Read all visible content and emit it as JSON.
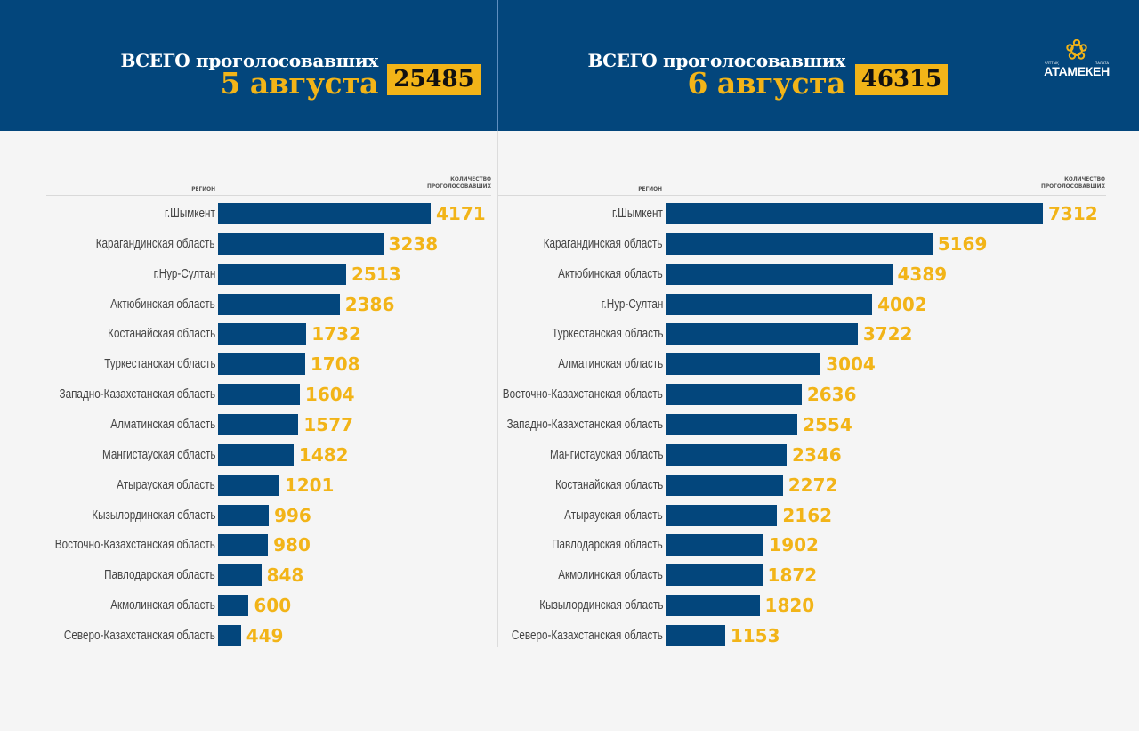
{
  "colors": {
    "header_bg": "#03467c",
    "accent_yellow": "#f2b418",
    "bar": "#03467c",
    "page_bg": "#f5f5f5"
  },
  "logo": {
    "icon": "atameken-ornament-icon",
    "name": "АТАМЕКЕН",
    "small_left": "ҰЛТТЫҚ",
    "small_right": "ПАЛАТА"
  },
  "panels": [
    {
      "title_line1": "ВСЕГО проголосовавших",
      "title_line2": "5 августа",
      "total": "25485",
      "col_region": "РЕГИОН",
      "col_count_1": "КОЛИЧЕСТВО",
      "col_count_2": "ПРОГОЛОСОВАВШИХ"
    },
    {
      "title_line1": "ВСЕГО проголосовавших",
      "title_line2": "6 августа",
      "total": "46315",
      "col_region": "РЕГИОН",
      "col_count_1": "КОЛИЧЕСТВО",
      "col_count_2": "ПРОГОЛОСОВАВШИХ"
    }
  ],
  "chart_data": [
    {
      "type": "bar",
      "orientation": "horizontal",
      "title": "ВСЕГО проголосовавших 5 августа",
      "total": 25485,
      "xlabel": "КОЛИЧЕСТВО ПРОГОЛОСОВАВШИХ",
      "ylabel": "РЕГИОН",
      "grid": false,
      "legend": "none",
      "xlim": [
        0,
        4171
      ],
      "categories": [
        "г.Шымкент",
        "Карагандинская область",
        "г.Нур-Султан",
        "Актюбинская область",
        "Костанайская область",
        "Туркестанская область",
        "Западно-Казахстанская область",
        "Алматинская область",
        "Мангистауская область",
        "Атырауская область",
        "Кызылординская область",
        "Восточно-Казахстанская область",
        "Павлодарская область",
        "Акмолинская область",
        "Северо-Казахстанская область"
      ],
      "values": [
        4171,
        3238,
        2513,
        2386,
        1732,
        1708,
        1604,
        1577,
        1482,
        1201,
        996,
        980,
        848,
        600,
        449
      ]
    },
    {
      "type": "bar",
      "orientation": "horizontal",
      "title": "ВСЕГО проголосовавших 6 августа",
      "total": 46315,
      "xlabel": "КОЛИЧЕСТВО ПРОГОЛОСОВАВШИХ",
      "ylabel": "РЕГИОН",
      "grid": false,
      "legend": "none",
      "xlim": [
        0,
        7312
      ],
      "categories": [
        "г.Шымкент",
        "Карагандинская область",
        "Актюбинская область",
        "г.Нур-Султан",
        "Туркестанская область",
        "Алматинская область",
        "Восточно-Казахстанская область",
        "Западно-Казахстанская область",
        "Мангистауская область",
        "Костанайская область",
        "Атырауская область",
        "Павлодарская область",
        "Акмолинская область",
        "Кызылординская область",
        "Северо-Казахстанская область"
      ],
      "values": [
        7312,
        5169,
        4389,
        4002,
        3722,
        3004,
        2636,
        2554,
        2346,
        2272,
        2162,
        1902,
        1872,
        1820,
        1153
      ]
    }
  ]
}
